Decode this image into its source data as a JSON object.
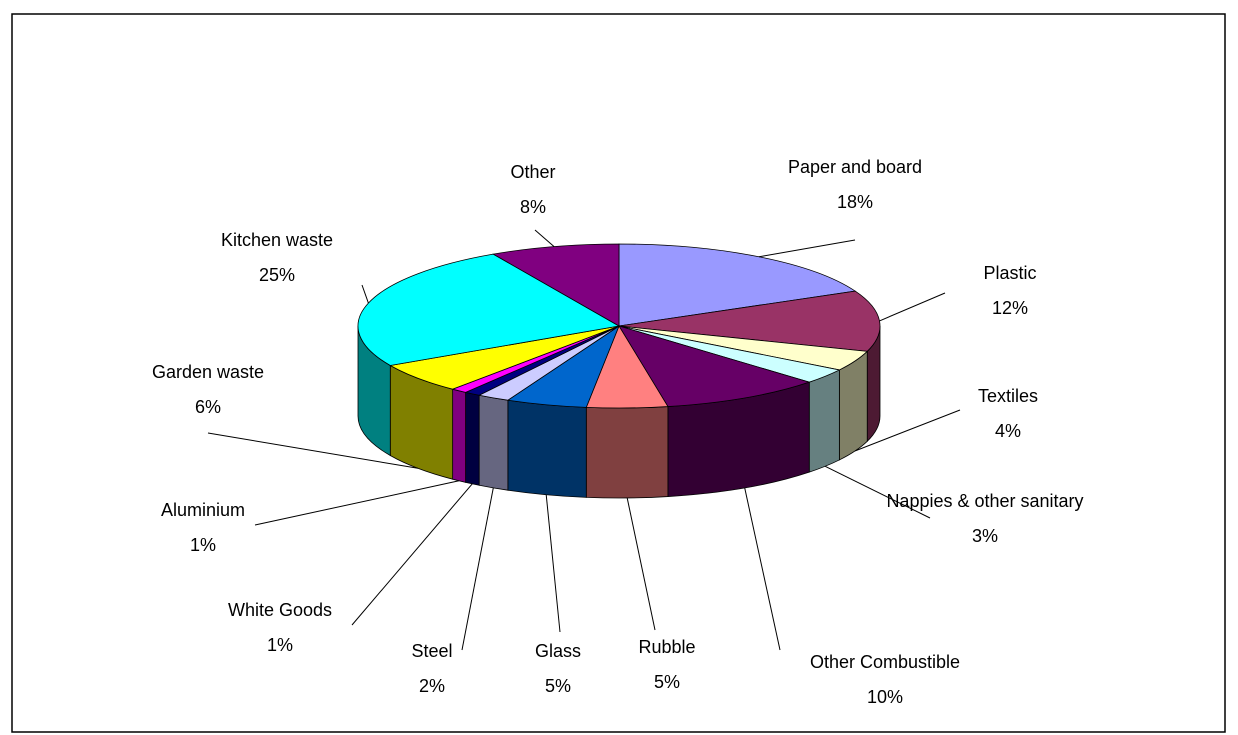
{
  "chart_data": {
    "type": "pie3d",
    "categories": [
      "Paper and board",
      "Plastic",
      "Textiles",
      "Nappies & other sanitary",
      "Other Combustible",
      "Rubble",
      "Glass",
      "Steel",
      "White Goods",
      "Aluminium",
      "Garden waste",
      "Kitchen waste",
      "Other"
    ],
    "values": [
      18,
      12,
      4,
      3,
      10,
      5,
      5,
      2,
      1,
      1,
      6,
      25,
      8
    ],
    "value_labels": [
      "18%",
      "12%",
      "4%",
      "3%",
      "10%",
      "5%",
      "5%",
      "2%",
      "1%",
      "1%",
      "6%",
      "25%",
      "8%"
    ],
    "colors": [
      "#9999ff",
      "#993366",
      "#ffffcc",
      "#ccffff",
      "#660066",
      "#ff8080",
      "#0066cc",
      "#ccccff",
      "#000080",
      "#ff00ff",
      "#ffff00",
      "#00ffff",
      "#800080"
    ]
  }
}
